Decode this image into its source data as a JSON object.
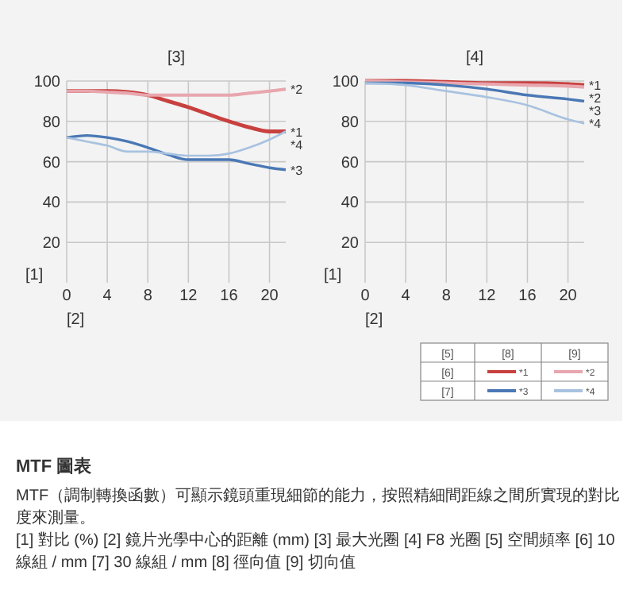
{
  "chart_data": [
    {
      "type": "line",
      "title": "[3]",
      "xlabel": "[2]",
      "ylabel": "[1]",
      "x": [
        0,
        2,
        4,
        6,
        8,
        10,
        12,
        14,
        16,
        18,
        20,
        21.6
      ],
      "xlim": [
        0,
        21.6
      ],
      "ylim": [
        0,
        100
      ],
      "xticks": [
        0,
        4,
        8,
        12,
        16,
        20
      ],
      "yticks": [
        20,
        40,
        60,
        80,
        100
      ],
      "grid": true,
      "legend": false,
      "series": [
        {
          "name": "*1",
          "color": "#c8413f",
          "values": [
            95,
            95,
            95,
            94.5,
            93,
            90,
            87,
            83.5,
            80,
            77,
            75,
            75
          ]
        },
        {
          "name": "*2",
          "color": "#e8a6ae",
          "values": [
            95,
            95,
            94.5,
            94,
            93,
            93,
            93,
            93,
            93,
            94,
            95,
            96
          ]
        },
        {
          "name": "*3",
          "color": "#4a78b5",
          "values": [
            72,
            73,
            72,
            70,
            67,
            63.5,
            61,
            61,
            61,
            59,
            57,
            56
          ]
        },
        {
          "name": "*4",
          "color": "#a8c2e0",
          "values": [
            72,
            70,
            68,
            65,
            65,
            64,
            63,
            63,
            64,
            67,
            71,
            75
          ]
        }
      ]
    },
    {
      "type": "line",
      "title": "[4]",
      "xlabel": "[2]",
      "ylabel": "[1]",
      "x": [
        0,
        4,
        8,
        12,
        16,
        20,
        21.6
      ],
      "xlim": [
        0,
        21.6
      ],
      "ylim": [
        0,
        100
      ],
      "xticks": [
        0,
        4,
        8,
        12,
        16,
        20
      ],
      "yticks": [
        20,
        40,
        60,
        80,
        100
      ],
      "grid": true,
      "legend": "bottom",
      "legend_title": "[5]",
      "annotations": [
        "[8]",
        "[9]",
        "[6]",
        "[7]"
      ],
      "series": [
        {
          "name": "*1",
          "color": "#c8413f",
          "values": [
            100,
            100,
            99.5,
            99,
            99,
            98.5,
            98
          ]
        },
        {
          "name": "*2",
          "color": "#e8a6ae",
          "values": [
            100,
            99.5,
            99,
            98.5,
            98,
            97.5,
            97
          ]
        },
        {
          "name": "*3",
          "color": "#4a78b5",
          "values": [
            99,
            99,
            98,
            96,
            93,
            91,
            90
          ]
        },
        {
          "name": "*4",
          "color": "#a8c2e0",
          "values": [
            99,
            98,
            95,
            92,
            88,
            81,
            79
          ]
        }
      ]
    },
    {
      "type": "other",
      "title": "MTF 圖表",
      "annotations": [
        "MTF（調制轉換函數）可顯示鏡頭重現細節的能力，按照精細間距線之間所實現的對比度來測量。",
        "[1] 對比 (%) [2] 鏡片光學中心的距離 (mm) [3] 最大光圈 [4] F8 光圈 [5] 空間頻率 [6] 10 線組 / mm [7] 30 線組 / mm [8] 徑向值 [9] 切向值"
      ]
    }
  ]
}
